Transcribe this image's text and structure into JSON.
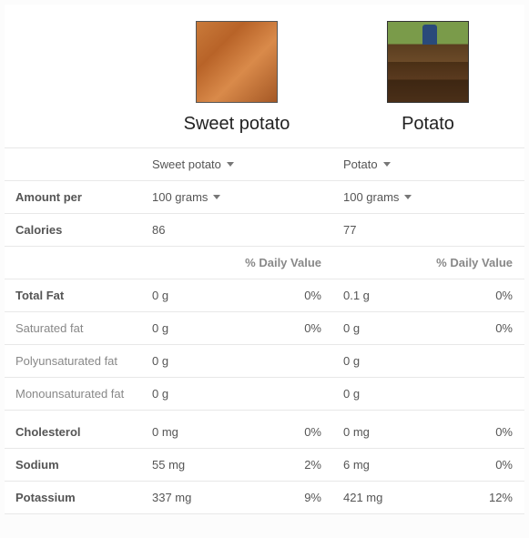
{
  "foods": [
    {
      "title": "Sweet potato",
      "select_label": "Sweet potato"
    },
    {
      "title": "Potato",
      "select_label": "Potato"
    }
  ],
  "amount_label": "Amount per",
  "amount_value": "100 grams",
  "calories_label": "Calories",
  "calories": [
    "86",
    "77"
  ],
  "dv_header": "% Daily Value",
  "nutrients": [
    {
      "label": "Total Fat",
      "bold": true,
      "a_val": "0 g",
      "a_pct": "0%",
      "b_val": "0.1 g",
      "b_pct": "0%"
    },
    {
      "label": "Saturated fat",
      "bold": false,
      "a_val": "0 g",
      "a_pct": "0%",
      "b_val": "0 g",
      "b_pct": "0%"
    },
    {
      "label": "Polyunsaturated fat",
      "bold": false,
      "a_val": "0 g",
      "a_pct": "",
      "b_val": "0 g",
      "b_pct": ""
    },
    {
      "label": "Monounsaturated fat",
      "bold": false,
      "a_val": "0 g",
      "a_pct": "",
      "b_val": "0 g",
      "b_pct": ""
    }
  ],
  "nutrients2": [
    {
      "label": "Cholesterol",
      "bold": true,
      "a_val": "0 mg",
      "a_pct": "0%",
      "b_val": "0 mg",
      "b_pct": "0%"
    },
    {
      "label": "Sodium",
      "bold": true,
      "a_val": "55 mg",
      "a_pct": "2%",
      "b_val": "6 mg",
      "b_pct": "0%"
    },
    {
      "label": "Potassium",
      "bold": true,
      "a_val": "337 mg",
      "a_pct": "9%",
      "b_val": "421 mg",
      "b_pct": "12%"
    }
  ],
  "colors": {
    "border": "#e8e8e8",
    "text_dark": "#222",
    "text_mid": "#555",
    "text_light": "#888"
  }
}
